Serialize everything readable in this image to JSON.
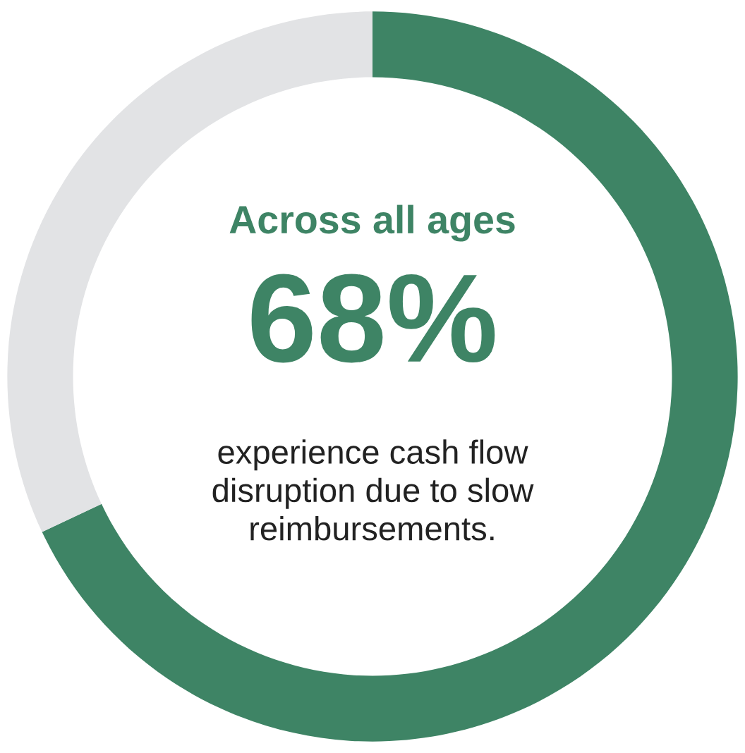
{
  "chart_data": {
    "type": "donut",
    "title": "Across all ages",
    "categories": [
      null,
      null
    ],
    "values": [
      68,
      32
    ],
    "colors": [
      "#3e8465",
      "#e2e3e5"
    ],
    "value_labels": [
      "68%",
      null
    ],
    "annotations": [
      "experience cash flow\ndisruption due to slow\nreimbursements."
    ]
  }
}
